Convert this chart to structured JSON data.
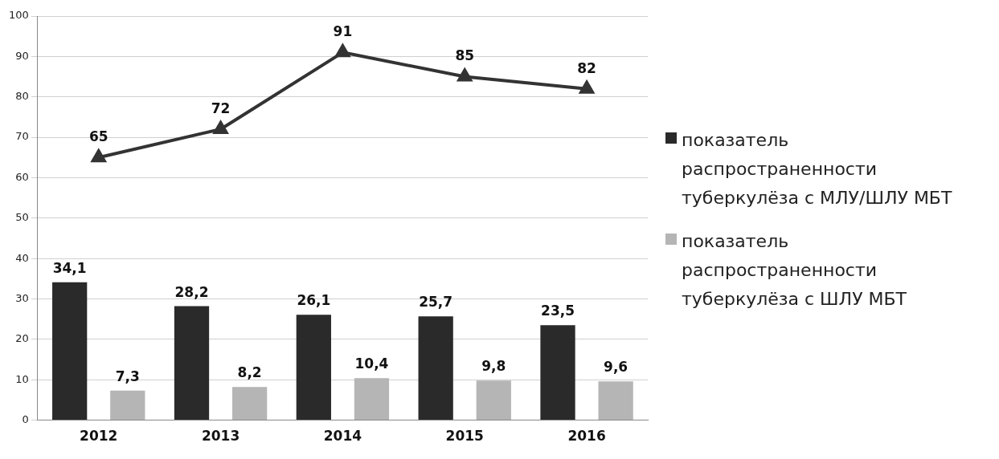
{
  "chart_data": {
    "type": "bar",
    "categories": [
      "2012",
      "2013",
      "2014",
      "2015",
      "2016"
    ],
    "series": [
      {
        "name": "показатель распространенности туберкулёза с МЛУ/ШЛУ МБТ",
        "color": "#2a2a2a",
        "values": [
          34.1,
          28.2,
          26.1,
          25.7,
          23.5
        ],
        "value_labels": [
          "34,1",
          "28,2",
          "26,1",
          "25,7",
          "23,5"
        ]
      },
      {
        "name": "показатель распространенности туберкулёза с ШЛУ МБТ",
        "color": "#b5b5b5",
        "values": [
          7.3,
          8.2,
          10.4,
          9.8,
          9.6
        ],
        "value_labels": [
          "7,3",
          "8,2",
          "10,4",
          "9,8",
          "9,6"
        ]
      },
      {
        "type": "line",
        "color": "#333333",
        "values": [
          65,
          72,
          91,
          85,
          82
        ],
        "value_labels": [
          "65",
          "72",
          "91",
          "85",
          "82"
        ]
      }
    ],
    "ylim": [
      0,
      100
    ],
    "yticks": [
      0,
      10,
      20,
      30,
      40,
      50,
      60,
      70,
      80,
      90,
      100
    ],
    "grid": "y",
    "legend": "right",
    "marker": "triangle",
    "line_style": "solid"
  }
}
